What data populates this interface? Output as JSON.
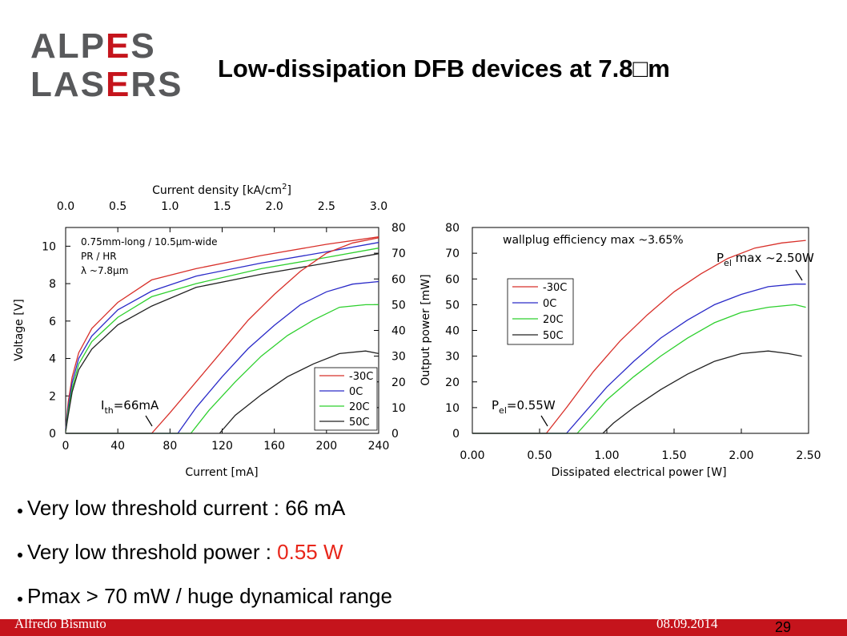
{
  "slide": {
    "title": "Low-dissipation DFB devices at 7.8□m",
    "logo": {
      "line1": "ALPES",
      "line2": "LASERS"
    },
    "bullets": [
      {
        "text": "Very low threshold current : 66 mA",
        "highlight": ""
      },
      {
        "text": "Very low threshold power : ",
        "highlight": "0.55 W"
      },
      {
        "text": "Pmax > 70 mW / huge dynamical range",
        "highlight": ""
      }
    ],
    "footer": {
      "author": "Alfredo Bismuto",
      "date": "08.09.2014",
      "page": "29"
    }
  },
  "colors": {
    "footer_bar": "#c5141c",
    "highlight": "#e8261a",
    "logo_gray": "#58595b",
    "logo_red": "#c5141c"
  },
  "chart_data": [
    {
      "type": "line",
      "xlabel": "Current [mA]",
      "x_ticks": [
        "0",
        "40",
        "80",
        "120",
        "160",
        "200",
        "240"
      ],
      "xlim": [
        0,
        240
      ],
      "top_xlabel": "Current density [kA/cm",
      "top_xlabel_sup": "2",
      "top_xlabel_end": "]",
      "top_ticks": [
        "0.0",
        "0.5",
        "1.0",
        "1.5",
        "2.0",
        "2.5",
        "3.0"
      ],
      "ylabel": "Voltage [V]",
      "y_ticks": [
        "0",
        "2",
        "4",
        "6",
        "8",
        "10"
      ],
      "ylim": [
        0,
        11
      ],
      "y2label": "Output power [mW]",
      "y2_ticks": [
        "0",
        "10",
        "20",
        "30",
        "40",
        "50",
        "60",
        "70",
        "80"
      ],
      "y2lim": [
        0,
        80
      ],
      "annotation_lines": [
        "0.75mm-long / 10.5μm-wide",
        "PR / HR",
        "λ ~7.8μm"
      ],
      "threshold_label": "I",
      "threshold_sub": "th",
      "threshold_value": "=66mA",
      "legend": [
        "-30C",
        "0C",
        "20C",
        "50C"
      ],
      "legend_position": "bottom-right",
      "series_colors": [
        "#d8302a",
        "#2a2ac8",
        "#2ed02e",
        "#222222"
      ],
      "voltage_series": [
        {
          "name": "-30C",
          "x": [
            0,
            2,
            5,
            10,
            20,
            40,
            66,
            100,
            150,
            200,
            240
          ],
          "y": [
            0.2,
            1.7,
            3.0,
            4.3,
            5.6,
            7.0,
            8.2,
            8.8,
            9.5,
            10.1,
            10.5
          ]
        },
        {
          "name": "0C",
          "x": [
            0,
            2,
            5,
            10,
            20,
            40,
            66,
            100,
            150,
            200,
            240
          ],
          "y": [
            0.2,
            1.4,
            2.7,
            4.0,
            5.2,
            6.6,
            7.6,
            8.4,
            9.1,
            9.7,
            10.2
          ]
        },
        {
          "name": "20C",
          "x": [
            0,
            2,
            5,
            10,
            20,
            40,
            66,
            100,
            150,
            200,
            240
          ],
          "y": [
            0.1,
            1.2,
            2.4,
            3.7,
            4.9,
            6.2,
            7.3,
            8.0,
            8.8,
            9.4,
            9.9
          ]
        },
        {
          "name": "50C",
          "x": [
            0,
            2,
            5,
            10,
            20,
            40,
            66,
            100,
            150,
            200,
            240
          ],
          "y": [
            0.1,
            1.0,
            2.2,
            3.4,
            4.5,
            5.8,
            6.8,
            7.8,
            8.5,
            9.1,
            9.6
          ]
        }
      ],
      "power_series": [
        {
          "name": "-30C",
          "x": [
            0,
            66,
            80,
            100,
            120,
            140,
            160,
            180,
            200,
            220,
            240
          ],
          "y": [
            0,
            0,
            8,
            20,
            32,
            44,
            54,
            63,
            70,
            74,
            76
          ]
        },
        {
          "name": "0C",
          "x": [
            0,
            86,
            100,
            120,
            140,
            160,
            180,
            200,
            220,
            240
          ],
          "y": [
            0,
            0,
            10,
            22,
            33,
            42,
            50,
            55,
            58,
            59
          ]
        },
        {
          "name": "20C",
          "x": [
            0,
            96,
            110,
            130,
            150,
            170,
            190,
            210,
            230,
            240
          ],
          "y": [
            0,
            0,
            9,
            20,
            30,
            38,
            44,
            49,
            50,
            50
          ]
        },
        {
          "name": "50C",
          "x": [
            0,
            118,
            130,
            150,
            170,
            190,
            210,
            230,
            240
          ],
          "y": [
            0,
            0,
            7,
            15,
            22,
            27,
            31,
            32,
            31
          ]
        }
      ]
    },
    {
      "type": "line",
      "xlabel": "Dissipated electrical power [W]",
      "x_ticks": [
        "0.00",
        "0.50",
        "1.00",
        "1.50",
        "2.00",
        "2.50"
      ],
      "xlim": [
        0,
        2.5
      ],
      "ylabel": "",
      "y_ticks": [
        "0",
        "10",
        "20",
        "30",
        "40",
        "50",
        "60",
        "70",
        "80"
      ],
      "ylim": [
        0,
        80
      ],
      "annotation": "wallplug efficiency max ~3.65%",
      "pmax_label": "P",
      "pmax_sub": "el",
      "pmax_value": " max ~2.50W",
      "pth_label": "P",
      "pth_sub": "el",
      "pth_value": "=0.55W",
      "legend": [
        "-30C",
        "0C",
        "20C",
        "50C"
      ],
      "legend_position": "top-left",
      "series_colors": [
        "#d8302a",
        "#2a2ac8",
        "#2ed02e",
        "#222222"
      ],
      "series": [
        {
          "name": "-30C",
          "x": [
            0,
            0.55,
            0.7,
            0.9,
            1.1,
            1.3,
            1.5,
            1.7,
            1.9,
            2.1,
            2.3,
            2.48
          ],
          "y": [
            0,
            0,
            10,
            24,
            36,
            46,
            55,
            62,
            68,
            72,
            74,
            75
          ]
        },
        {
          "name": "0C",
          "x": [
            0,
            0.7,
            0.85,
            1.0,
            1.2,
            1.4,
            1.6,
            1.8,
            2.0,
            2.2,
            2.4,
            2.48
          ],
          "y": [
            0,
            0,
            9,
            18,
            28,
            37,
            44,
            50,
            54,
            57,
            58,
            58
          ]
        },
        {
          "name": "20C",
          "x": [
            0,
            0.78,
            0.9,
            1.0,
            1.2,
            1.4,
            1.6,
            1.8,
            2.0,
            2.2,
            2.4,
            2.48
          ],
          "y": [
            0,
            0,
            7,
            13,
            22,
            30,
            37,
            43,
            47,
            49,
            50,
            49
          ]
        },
        {
          "name": "50C",
          "x": [
            0,
            0.97,
            1.05,
            1.2,
            1.4,
            1.6,
            1.8,
            2.0,
            2.2,
            2.35,
            2.45
          ],
          "y": [
            0,
            0,
            4,
            10,
            17,
            23,
            28,
            31,
            32,
            31,
            30
          ]
        }
      ]
    }
  ]
}
